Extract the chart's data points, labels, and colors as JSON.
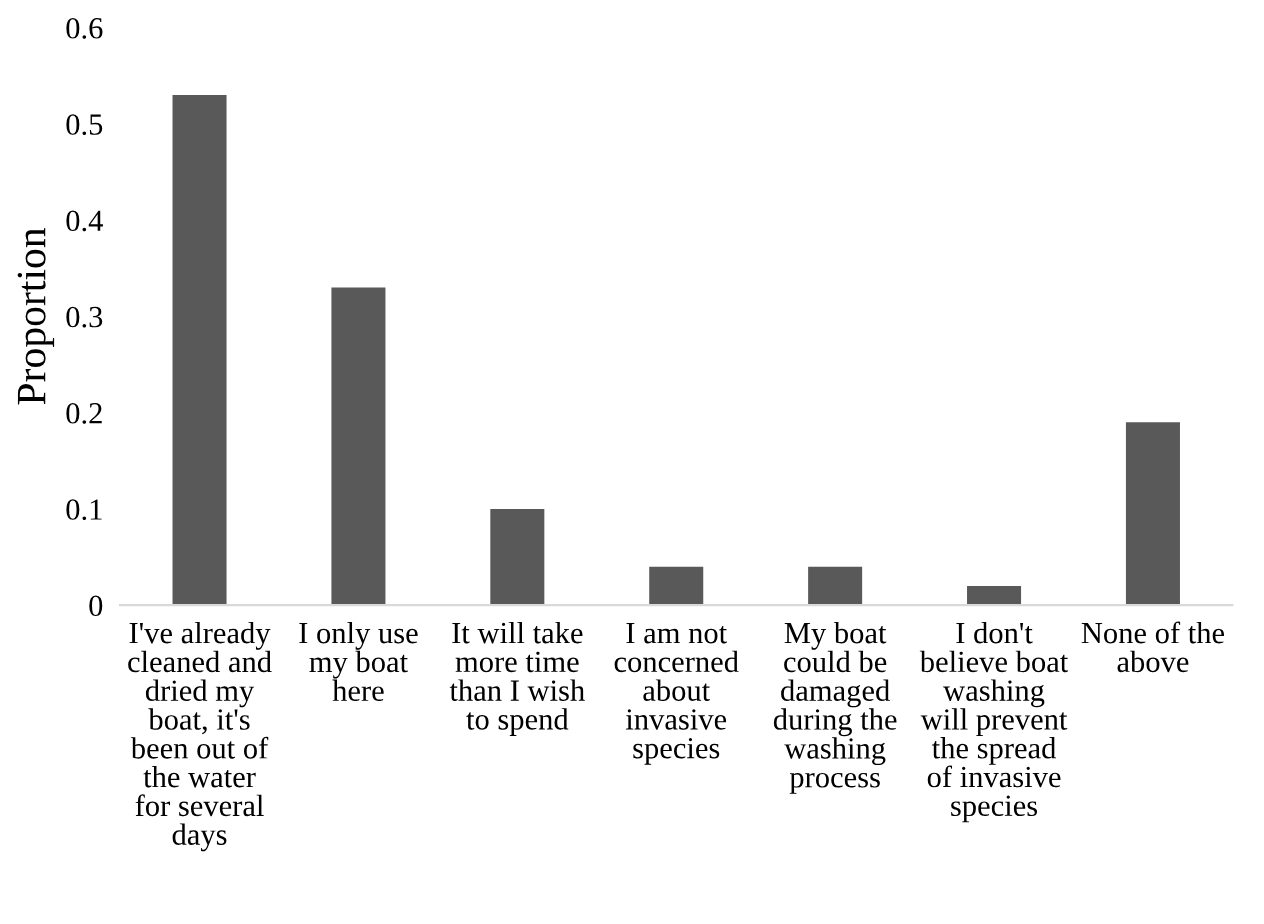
{
  "chart_data": {
    "type": "bar",
    "ylabel": "Proportion",
    "categories": [
      "I've already\ncleaned and\ndried my\nboat, it's\nbeen out of\nthe water\nfor several\ndays",
      "I only use\nmy boat\nhere",
      "It will take\nmore time\nthan I wish\nto spend",
      "I am not\nconcerned\nabout\ninvasive\nspecies",
      "My boat\ncould be\ndamaged\nduring the\nwashing\nprocess",
      "I don't\nbelieve boat\nwashing\nwill prevent\nthe spread\nof invasive\nspecies",
      "None of the\nabove"
    ],
    "values": [
      0.53,
      0.33,
      0.1,
      0.04,
      0.04,
      0.02,
      0.19
    ],
    "color": "#595959",
    "ylim": [
      0,
      0.6
    ],
    "yticks": [
      0,
      0.1,
      0.2,
      0.3,
      0.4,
      0.5,
      0.6
    ],
    "grid": false,
    "legend": false
  }
}
